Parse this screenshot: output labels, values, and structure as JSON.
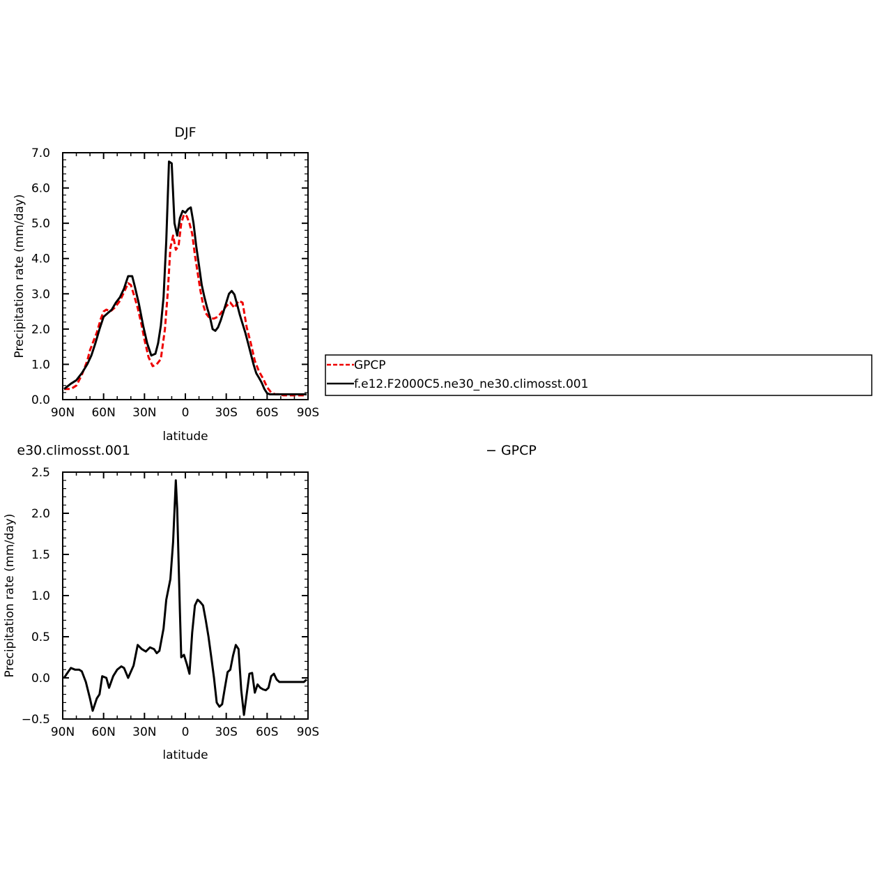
{
  "chart_data": [
    {
      "type": "line",
      "title": "DJF",
      "xlabel": "latitude",
      "ylabel": "Precipitation rate (mm/day)",
      "xlim": [
        90,
        -90
      ],
      "ylim": [
        0,
        7
      ],
      "x_ticks": [
        90,
        60,
        30,
        0,
        -30,
        -60,
        -90
      ],
      "x_tick_labels": [
        "90N",
        "60N",
        "30N",
        "0",
        "30S",
        "60S",
        "90S"
      ],
      "y_ticks": [
        0,
        1,
        2,
        3,
        4,
        5,
        6,
        7
      ],
      "y_tick_labels": [
        "0.0",
        "1.0",
        "2.0",
        "3.0",
        "4.0",
        "5.0",
        "6.0",
        "7.0"
      ],
      "legend": {
        "position": "right",
        "entries": [
          "GPCP",
          "f.e12.F2000C5.ne30_ne30.climosst.001"
        ]
      },
      "series": [
        {
          "name": "GPCP",
          "color": "#ee0000",
          "dashed": true,
          "x": [
            89,
            84,
            80,
            76,
            72,
            70,
            68,
            65,
            62,
            60,
            58,
            55,
            52,
            48,
            45,
            42,
            40,
            38,
            35,
            32,
            30,
            27,
            24,
            21,
            18,
            15,
            13,
            11,
            9,
            7,
            5,
            3,
            1,
            -1,
            -3,
            -5,
            -7,
            -9,
            -11,
            -13,
            -15,
            -17,
            -19,
            -21,
            -24,
            -27,
            -30,
            -33,
            -36,
            -39,
            -42,
            -45,
            -48,
            -51,
            -54,
            -57,
            -60,
            -63,
            -66,
            -69,
            -72,
            -75,
            -78,
            -81,
            -84,
            -87,
            -89
          ],
          "values": [
            0.3,
            0.3,
            0.4,
            0.7,
            1.1,
            1.4,
            1.6,
            1.9,
            2.3,
            2.5,
            2.55,
            2.5,
            2.6,
            2.8,
            3.05,
            3.3,
            3.25,
            3.0,
            2.6,
            2.1,
            1.7,
            1.2,
            0.95,
            1.0,
            1.15,
            2.0,
            3.0,
            4.3,
            4.65,
            4.25,
            4.35,
            5.0,
            5.25,
            5.2,
            5.0,
            4.7,
            4.1,
            3.6,
            3.1,
            2.7,
            2.45,
            2.35,
            2.3,
            2.3,
            2.35,
            2.5,
            2.65,
            2.75,
            2.6,
            2.8,
            2.75,
            2.05,
            1.6,
            1.1,
            0.8,
            0.6,
            0.35,
            0.2,
            0.15,
            0.15,
            0.12,
            0.12,
            0.12,
            0.12,
            0.12,
            0.12,
            0.12
          ]
        },
        {
          "name": "f.e12.F2000C5.ne30_ne30.climosst.001",
          "color": "#000000",
          "dashed": false,
          "x": [
            89,
            84,
            80,
            76,
            72,
            69,
            66,
            63,
            60,
            57,
            54,
            51,
            48,
            45,
            42,
            39,
            37,
            34,
            31,
            28,
            25,
            22,
            20,
            18,
            16,
            14,
            12,
            10,
            8,
            6,
            4,
            2,
            0,
            -2,
            -4,
            -6,
            -8,
            -10,
            -12,
            -14,
            -16,
            -18,
            -20,
            -22,
            -24,
            -26,
            -28,
            -30,
            -32,
            -34,
            -36,
            -38,
            -40,
            -42,
            -44,
            -46,
            -48,
            -50,
            -52,
            -54,
            -56,
            -58,
            -60,
            -62,
            -64,
            -66,
            -68,
            -70,
            -72,
            -74,
            -76,
            -78,
            -80,
            -82,
            -84,
            -86,
            -88,
            -89
          ],
          "values": [
            0.3,
            0.45,
            0.55,
            0.75,
            1.0,
            1.25,
            1.6,
            2.0,
            2.35,
            2.45,
            2.55,
            2.75,
            2.9,
            3.15,
            3.5,
            3.5,
            3.2,
            2.7,
            2.1,
            1.6,
            1.25,
            1.3,
            1.6,
            2.1,
            2.9,
            4.5,
            6.75,
            6.7,
            5.0,
            4.65,
            5.15,
            5.35,
            5.3,
            5.4,
            5.45,
            5.0,
            4.35,
            3.8,
            3.25,
            2.9,
            2.6,
            2.35,
            2.0,
            1.95,
            2.05,
            2.25,
            2.5,
            2.75,
            3.0,
            3.08,
            2.98,
            2.7,
            2.4,
            2.15,
            1.9,
            1.6,
            1.3,
            1.0,
            0.75,
            0.62,
            0.48,
            0.3,
            0.18,
            0.15,
            0.15,
            0.15,
            0.15,
            0.15,
            0.15,
            0.15,
            0.15,
            0.15,
            0.15,
            0.15,
            0.15,
            0.15,
            0.15,
            0.15
          ]
        }
      ]
    },
    {
      "type": "line",
      "title_left": "e30.climosst.001",
      "title_right": "− GPCP",
      "xlabel": "latitude",
      "ylabel": "Precipitation rate (mm/day)",
      "xlim": [
        90,
        -90
      ],
      "ylim": [
        -0.5,
        2.5
      ],
      "x_ticks": [
        90,
        60,
        30,
        0,
        -30,
        -60,
        -90
      ],
      "x_tick_labels": [
        "90N",
        "60N",
        "30N",
        "0",
        "30S",
        "60S",
        "90S"
      ],
      "y_ticks": [
        -0.5,
        0,
        0.5,
        1.0,
        1.5,
        2.0,
        2.5
      ],
      "y_tick_labels": [
        "−0.5",
        "0.0",
        "0.5",
        "1.0",
        "1.5",
        "2.0",
        "2.5"
      ],
      "series": [
        {
          "color": "#000000",
          "dashed": false,
          "x": [
            89,
            87,
            84,
            81,
            78,
            76,
            73,
            70,
            68,
            65,
            63,
            61,
            58,
            56,
            53,
            50,
            47,
            45,
            42,
            38,
            35,
            32,
            29,
            26,
            23,
            21,
            19,
            16,
            14,
            11,
            9,
            7,
            6,
            4,
            3,
            1,
            -1,
            -3,
            -5,
            -7,
            -9,
            -11,
            -13,
            -15,
            -17,
            -19,
            -21,
            -23,
            -25,
            -27,
            -29,
            -31,
            -33,
            -35,
            -37,
            -39,
            -41,
            -43,
            -45,
            -47,
            -49,
            -51,
            -53,
            -55,
            -57,
            -59,
            -61,
            -63,
            -65,
            -67,
            -69,
            -71,
            -73,
            -75,
            -77,
            -79,
            -81,
            -83,
            -85,
            -87,
            -89
          ],
          "values": [
            0.0,
            0.05,
            0.12,
            0.1,
            0.1,
            0.08,
            -0.05,
            -0.25,
            -0.4,
            -0.25,
            -0.2,
            0.02,
            0.0,
            -0.12,
            0.02,
            0.1,
            0.14,
            0.12,
            0.0,
            0.15,
            0.4,
            0.35,
            0.32,
            0.37,
            0.35,
            0.3,
            0.33,
            0.6,
            0.95,
            1.2,
            1.65,
            2.4,
            2.05,
            0.8,
            0.25,
            0.28,
            0.17,
            0.05,
            0.55,
            0.88,
            0.95,
            0.92,
            0.88,
            0.7,
            0.5,
            0.25,
            0.0,
            -0.3,
            -0.35,
            -0.32,
            -0.12,
            0.07,
            0.1,
            0.27,
            0.4,
            0.35,
            -0.15,
            -0.45,
            -0.2,
            0.05,
            0.06,
            -0.18,
            -0.08,
            -0.12,
            -0.14,
            -0.15,
            -0.12,
            0.02,
            0.05,
            -0.02,
            -0.05,
            -0.05,
            -0.05,
            -0.05,
            -0.05,
            -0.05,
            -0.05,
            -0.05,
            -0.05,
            -0.05,
            -0.02
          ]
        }
      ]
    }
  ]
}
